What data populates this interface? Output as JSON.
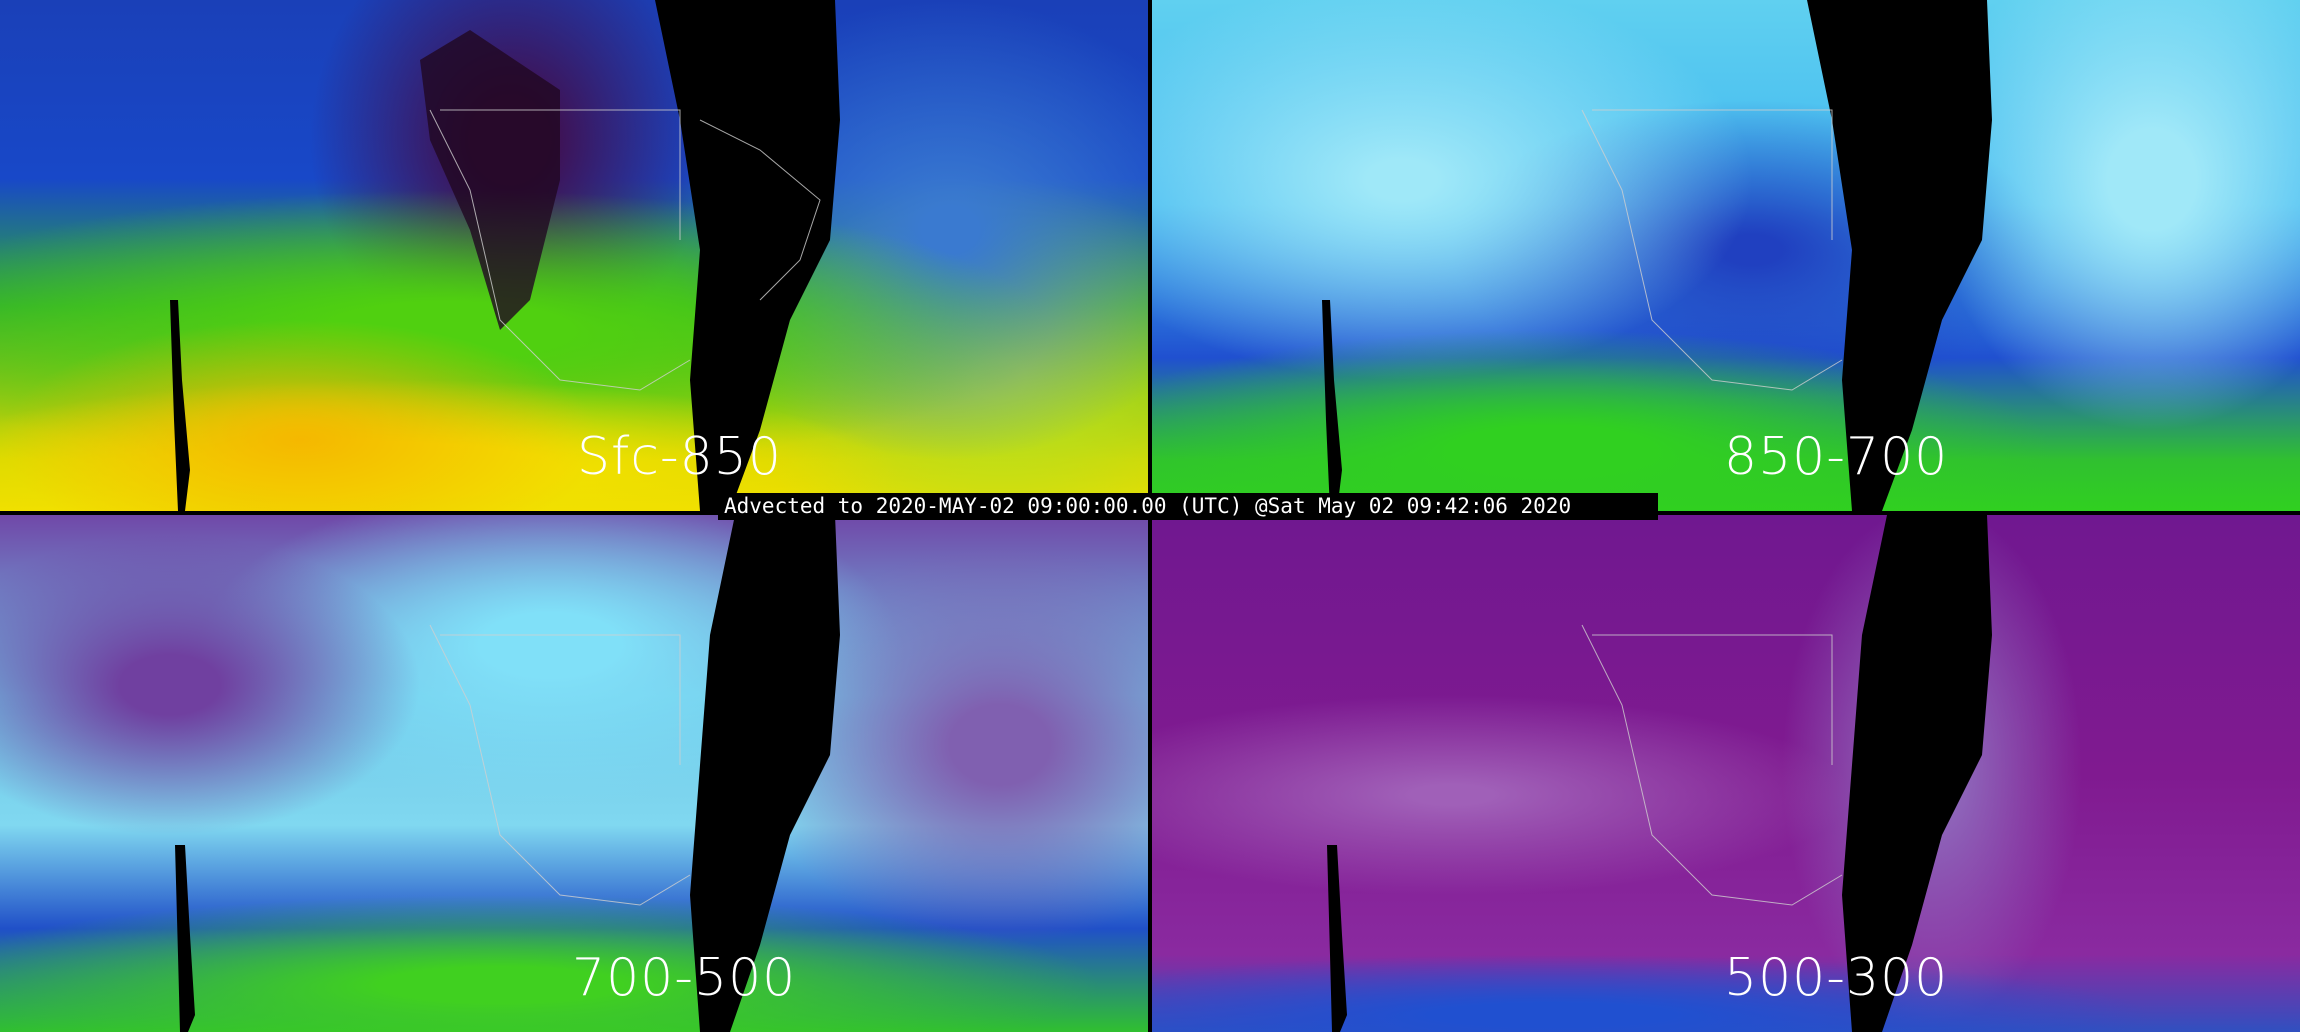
{
  "title_bar": "Advected to 2020-MAY-02 09:00:00.00 (UTC) @Sat May 02 09:42:06 2020",
  "panels": [
    {
      "label": "Sfc-850"
    },
    {
      "label": "850-700"
    },
    {
      "label": "700-500"
    },
    {
      "label": "500-300"
    }
  ],
  "colors": {
    "background": "#000000",
    "text": "#ffffff",
    "map_outline": "#d0d0d0"
  }
}
